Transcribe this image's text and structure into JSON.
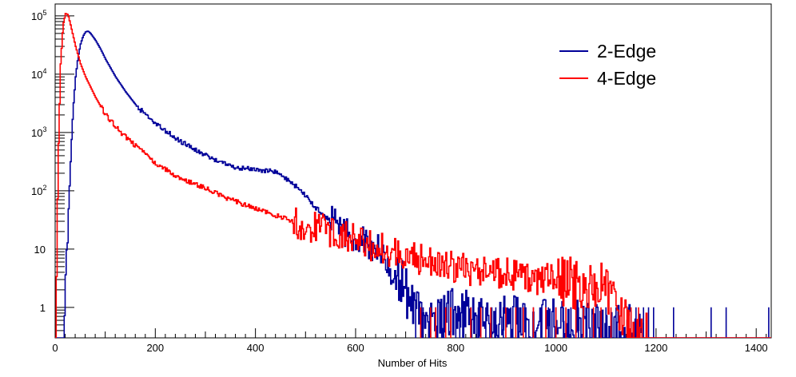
{
  "chart_data": {
    "type": "line",
    "title": "",
    "xlabel": "Number of Hits",
    "ylabel": "",
    "xlim": [
      0,
      1430
    ],
    "ylim": [
      0.3,
      160000
    ],
    "y_scale": "log",
    "grid": false,
    "legend_position": "top-right",
    "x_ticks": [
      {
        "value": 0,
        "label": "0"
      },
      {
        "value": 200,
        "label": "200"
      },
      {
        "value": 400,
        "label": "400"
      },
      {
        "value": 600,
        "label": "600"
      },
      {
        "value": 800,
        "label": "800"
      },
      {
        "value": 1000,
        "label": "1000"
      },
      {
        "value": 1200,
        "label": "1200"
      },
      {
        "value": 1400,
        "label": "1400"
      }
    ],
    "y_ticks": [
      {
        "value": 1,
        "base": "1",
        "exp": ""
      },
      {
        "value": 10,
        "base": "10",
        "exp": ""
      },
      {
        "value": 100,
        "base": "10",
        "exp": "2"
      },
      {
        "value": 1000,
        "base": "10",
        "exp": "3"
      },
      {
        "value": 10000,
        "base": "10",
        "exp": "4"
      },
      {
        "value": 100000,
        "base": "10",
        "exp": "5"
      }
    ],
    "series": [
      {
        "name": "2-Edge",
        "color": "#000099",
        "points": [
          [
            18,
            0.3
          ],
          [
            20,
            3
          ],
          [
            25,
            30
          ],
          [
            30,
            300
          ],
          [
            35,
            2500
          ],
          [
            40,
            9000
          ],
          [
            45,
            20000
          ],
          [
            50,
            33000
          ],
          [
            55,
            45000
          ],
          [
            60,
            53000
          ],
          [
            65,
            55000
          ],
          [
            70,
            50000
          ],
          [
            80,
            38000
          ],
          [
            90,
            27000
          ],
          [
            100,
            18000
          ],
          [
            120,
            9000
          ],
          [
            140,
            5000
          ],
          [
            160,
            3000
          ],
          [
            180,
            2000
          ],
          [
            200,
            1400
          ],
          [
            250,
            700
          ],
          [
            300,
            400
          ],
          [
            350,
            260
          ],
          [
            400,
            230
          ],
          [
            430,
            220
          ],
          [
            450,
            190
          ],
          [
            480,
            120
          ],
          [
            500,
            80
          ],
          [
            520,
            50
          ],
          [
            550,
            30
          ],
          [
            580,
            20
          ],
          [
            600,
            15
          ],
          [
            620,
            12
          ],
          [
            650,
            9
          ],
          [
            660,
            6
          ],
          [
            680,
            3
          ],
          [
            700,
            2
          ],
          [
            710,
            1
          ],
          [
            730,
            0.8
          ],
          [
            760,
            0.6
          ],
          [
            800,
            0.8
          ],
          [
            850,
            0.6
          ],
          [
            900,
            0.6
          ],
          [
            950,
            0.5
          ],
          [
            1000,
            0.5
          ],
          [
            1050,
            0.5
          ],
          [
            1100,
            0.4
          ],
          [
            1150,
            0.4
          ],
          [
            1170,
            0.3
          ]
        ],
        "spikes": [
          720,
          735,
          748,
          760,
          772,
          780,
          800,
          808,
          815,
          830,
          845,
          860,
          872,
          880,
          895,
          910,
          925,
          940,
          955,
          970,
          985,
          1000,
          1015,
          1030,
          1045,
          1060,
          1080,
          1100,
          1120,
          1145,
          1160,
          1175,
          1185,
          1195,
          1235,
          1310,
          1340,
          1425
        ]
      },
      {
        "name": "4-Edge",
        "color": "#ff0000",
        "points": [
          [
            0,
            0.3
          ],
          [
            5,
            300
          ],
          [
            10,
            15000
          ],
          [
            15,
            70000
          ],
          [
            20,
            110000
          ],
          [
            25,
            105000
          ],
          [
            30,
            70000
          ],
          [
            40,
            30000
          ],
          [
            50,
            15000
          ],
          [
            60,
            9000
          ],
          [
            80,
            4000
          ],
          [
            100,
            2000
          ],
          [
            130,
            1000
          ],
          [
            150,
            700
          ],
          [
            200,
            300
          ],
          [
            250,
            160
          ],
          [
            300,
            110
          ],
          [
            350,
            70
          ],
          [
            400,
            50
          ],
          [
            450,
            35
          ],
          [
            500,
            25
          ],
          [
            550,
            20
          ],
          [
            600,
            14
          ],
          [
            650,
            10
          ],
          [
            700,
            8
          ],
          [
            750,
            6
          ],
          [
            800,
            5
          ],
          [
            850,
            4
          ],
          [
            900,
            4
          ],
          [
            950,
            3
          ],
          [
            1000,
            3
          ],
          [
            1050,
            2.5
          ],
          [
            1100,
            2
          ],
          [
            1120,
            1
          ],
          [
            1140,
            0.6
          ],
          [
            1160,
            0.4
          ],
          [
            1180,
            0.3
          ]
        ],
        "spikes": [
          730,
          750,
          760,
          780,
          790,
          830,
          850,
          870,
          900,
          920,
          935,
          955,
          980,
          1000,
          1020,
          1040,
          1055,
          1075,
          1090,
          1110,
          1150,
          1165
        ]
      }
    ]
  }
}
